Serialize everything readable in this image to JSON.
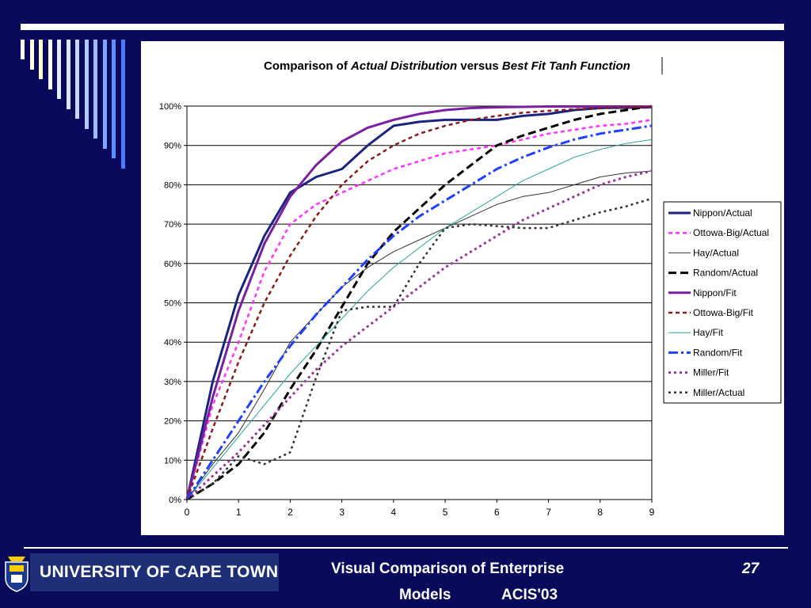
{
  "slide": {
    "university": "UNIVERSITY OF CAPE TOWN",
    "footer_line1": "Visual Comparison of Enterprise",
    "footer_line2_a": "Models",
    "footer_line2_b": "ACIS'03",
    "page_number": "27",
    "background_color": "#0a0a5c"
  },
  "chart_data": {
    "type": "line",
    "title_parts": [
      "Comparison of ",
      "Actual Distribution",
      " versus ",
      "Best Fit Tanh Function"
    ],
    "x_ticks": [
      "0",
      "1",
      "2",
      "3",
      "4",
      "5",
      "6",
      "7",
      "8",
      "9"
    ],
    "y_ticks": [
      "0%",
      "10%",
      "20%",
      "30%",
      "40%",
      "50%",
      "60%",
      "70%",
      "80%",
      "90%",
      "100%"
    ],
    "xlim": [
      0,
      9
    ],
    "ylim": [
      0,
      100
    ],
    "grid": "horizontal",
    "legend_position": "right",
    "series": [
      {
        "name": "Nippon/Actual",
        "color": "#1a237e",
        "dash": "solid",
        "width": 3,
        "x": [
          0,
          0.5,
          1,
          1.5,
          2,
          2.5,
          3,
          3.5,
          4,
          4.5,
          5,
          5.5,
          6,
          6.5,
          7,
          7.5,
          8,
          8.5,
          9
        ],
        "y": [
          0,
          30,
          52,
          67,
          78,
          82,
          84,
          90,
          95,
          96,
          96.5,
          96.5,
          96.5,
          97.5,
          98,
          99,
          99.5,
          99.6,
          99.7
        ]
      },
      {
        "name": "Ottowa-Big/Actual",
        "color": "#ff33ff",
        "dash": "dash",
        "width": 2.5,
        "x": [
          0,
          0.5,
          1,
          1.5,
          2,
          2.5,
          3,
          3.5,
          4,
          4.5,
          5,
          5.5,
          6,
          6.5,
          7,
          7.5,
          8,
          8.5,
          9
        ],
        "y": [
          0,
          24,
          40,
          58,
          70,
          75,
          78,
          81,
          84,
          86,
          88,
          89,
          90,
          91.5,
          93,
          94,
          95,
          95.5,
          96.5
        ]
      },
      {
        "name": "Hay/Actual",
        "color": "#333333",
        "dash": "solid",
        "width": 1,
        "x": [
          0,
          0.5,
          1,
          1.5,
          2,
          2.5,
          3,
          3.5,
          4,
          4.5,
          5,
          5.5,
          6,
          6.5,
          7,
          7.5,
          8,
          8.5,
          9
        ],
        "y": [
          0,
          9,
          17,
          28,
          40,
          47,
          54,
          59,
          63,
          66,
          69,
          72,
          75,
          77,
          78,
          80,
          82,
          83,
          83.5
        ]
      },
      {
        "name": "Random/Actual",
        "color": "#000000",
        "dash": "longdash",
        "width": 3,
        "x": [
          0,
          0.5,
          1,
          1.5,
          2,
          2.5,
          3,
          3.5,
          4,
          4.5,
          5,
          5.5,
          6,
          6.5,
          7,
          7.5,
          8,
          8.5,
          9
        ],
        "y": [
          0,
          4,
          9,
          17,
          28,
          38,
          49,
          60,
          68,
          74,
          80,
          85,
          90,
          92.5,
          94.5,
          96.5,
          98,
          99,
          100
        ]
      },
      {
        "name": "Nippon/Fit",
        "color": "#7b1fa2",
        "dash": "solid",
        "width": 3,
        "x": [
          0,
          0.5,
          1,
          1.5,
          2,
          2.5,
          3,
          3.5,
          4,
          4.5,
          5,
          5.5,
          6,
          6.5,
          7,
          7.5,
          8,
          8.5,
          9
        ],
        "y": [
          0,
          26,
          48,
          65,
          77,
          85,
          91,
          94.5,
          96.5,
          98,
          99,
          99.5,
          99.7,
          99.8,
          99.9,
          99.9,
          99.9,
          99.9,
          99.9
        ]
      },
      {
        "name": "Ottowa-Big/Fit",
        "color": "#8b1a1a",
        "dash": "dash",
        "width": 2.5,
        "x": [
          0,
          0.5,
          1,
          1.5,
          2,
          2.5,
          3,
          3.5,
          4,
          4.5,
          5,
          5.5,
          6,
          6.5,
          7,
          7.5,
          8,
          8.5,
          9
        ],
        "y": [
          0,
          18,
          35,
          50,
          62,
          72,
          80,
          86,
          90,
          93,
          95,
          96.5,
          97.5,
          98.3,
          98.8,
          99.2,
          99.5,
          99.7,
          99.8
        ]
      },
      {
        "name": "Hay/Fit",
        "color": "#26a69a",
        "dash": "solid",
        "width": 1,
        "x": [
          0,
          0.5,
          1,
          1.5,
          2,
          2.5,
          3,
          3.5,
          4,
          4.5,
          5,
          5.5,
          6,
          6.5,
          7,
          7.5,
          8,
          8.5,
          9
        ],
        "y": [
          0,
          8,
          16,
          24,
          32,
          39,
          46,
          53,
          59,
          64,
          69,
          73,
          77,
          81,
          84,
          87,
          89,
          90.5,
          91.5
        ]
      },
      {
        "name": "Random/Fit",
        "color": "#1e40ff",
        "dash": "dashdot",
        "width": 3,
        "x": [
          0,
          0.5,
          1,
          1.5,
          2,
          2.5,
          3,
          3.5,
          4,
          4.5,
          5,
          5.5,
          6,
          6.5,
          7,
          7.5,
          8,
          8.5,
          9
        ],
        "y": [
          0,
          10,
          20,
          30,
          39,
          47,
          54,
          61,
          67,
          72,
          76,
          80,
          84,
          87,
          89.5,
          91.5,
          93,
          94,
          95
        ]
      },
      {
        "name": "Miller/Fit",
        "color": "#993399",
        "dash": "dot",
        "width": 3,
        "x": [
          0,
          0.5,
          1,
          1.5,
          2,
          2.5,
          3,
          3.5,
          4,
          4.5,
          5,
          5.5,
          6,
          6.5,
          7,
          7.5,
          8,
          8.5,
          9
        ],
        "y": [
          0,
          6,
          12,
          19,
          26,
          33,
          39,
          44,
          49,
          54,
          59,
          63,
          67,
          71,
          74,
          77,
          80,
          82,
          83.5
        ]
      },
      {
        "name": "Miller/Actual",
        "color": "#333333",
        "dash": "dot",
        "width": 2.5,
        "x": [
          0,
          0.5,
          1,
          1.5,
          2,
          2.5,
          3,
          3.5,
          4,
          4.5,
          5,
          5.5,
          6,
          6.5,
          7,
          7.5,
          8,
          8.5,
          9
        ],
        "y": [
          0,
          4,
          11,
          9,
          12,
          31,
          48,
          49,
          49,
          60,
          69,
          70,
          69.5,
          69,
          69,
          71,
          73,
          74.5,
          76.5
        ]
      }
    ]
  }
}
